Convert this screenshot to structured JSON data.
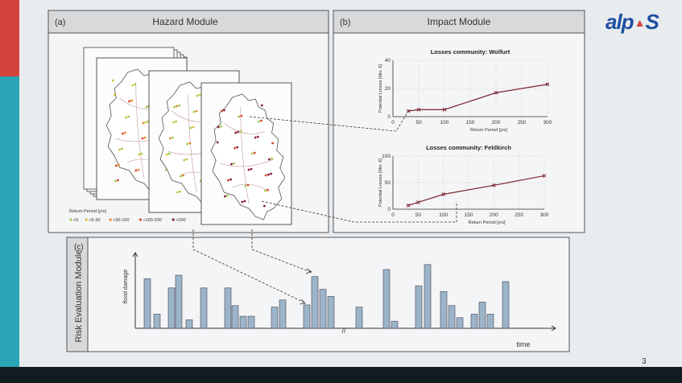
{
  "logo": {
    "text_left": "alp",
    "text_right": "S",
    "accent": "#d2443d",
    "brand": "#1e4fa3"
  },
  "page_number": "3",
  "hazard": {
    "panel_tag": "(a)",
    "title": "Hazard Module",
    "legend_title": "Return Period [yrs]",
    "legend_items": [
      {
        "label": "<5",
        "color": "#9ccc4a"
      },
      {
        "label": ">5-30",
        "color": "#d7c43a"
      },
      {
        "label": ">30-100",
        "color": "#e8872b"
      },
      {
        "label": ">100-200",
        "color": "#d9412a"
      },
      {
        "label": ">200",
        "color": "#8b1d3a"
      }
    ]
  },
  "impact": {
    "panel_tag": "(b)",
    "title": "Impact Module"
  },
  "risk": {
    "panel_tag": "(c)",
    "title": "Risk Evaluation Module",
    "ylabel": "flood damage",
    "xlabel": "time",
    "break_mark": "//"
  },
  "chart_data": [
    {
      "type": "line",
      "title": "Losses community: Wolfurt",
      "xlabel": "Return Period [yrs]",
      "ylabel": "Potential Losses [Mio. €]",
      "x": [
        30,
        50,
        100,
        200,
        300
      ],
      "y": [
        4,
        5,
        5,
        17,
        23
      ],
      "xlim": [
        0,
        300
      ],
      "ylim": [
        0,
        40
      ],
      "xticks": [
        0,
        50,
        100,
        150,
        200,
        250,
        300
      ],
      "yticks": [
        0,
        20,
        40
      ],
      "color": "#7a2330",
      "grid": true
    },
    {
      "type": "line",
      "title": "Losses community: Feldkirch",
      "xlabel": "Return Period [yrs]",
      "ylabel": "Potential Losses [Mio. €]",
      "x": [
        30,
        50,
        100,
        200,
        300
      ],
      "y": [
        7,
        13,
        28,
        45,
        63
      ],
      "xlim": [
        0,
        300
      ],
      "ylim": [
        0,
        100
      ],
      "xticks": [
        0,
        50,
        100,
        150,
        200,
        250,
        300
      ],
      "yticks": [
        0,
        50,
        100
      ],
      "color": "#7a2330",
      "grid": true
    },
    {
      "type": "bar",
      "title": "",
      "xlabel": "time",
      "ylabel": "flood damage",
      "values": [
        0.7,
        0.2,
        0.57,
        0.75,
        0.12,
        0.57,
        0.57,
        0.32,
        0.17,
        0.17,
        0.3,
        0.4,
        0.33,
        0.73,
        0.55,
        0.45,
        0.3,
        0.83,
        0.1,
        0.6,
        0.9,
        0.52,
        0.32,
        0.15,
        0.2,
        0.37,
        0.2,
        0.66
      ],
      "ylim": [
        0,
        1
      ],
      "color": "#9bb4c8",
      "axis_break": "//"
    }
  ]
}
